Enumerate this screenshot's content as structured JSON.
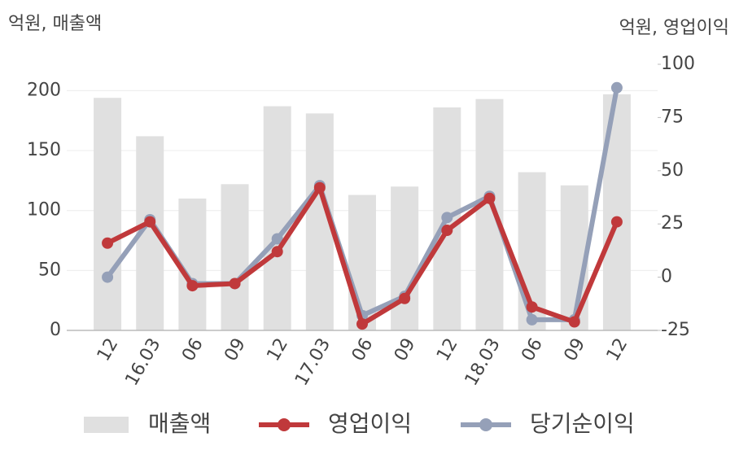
{
  "chart_data": {
    "type": "bar_line",
    "y_label": "억원, 매출액",
    "y2_label": "억원, 영업이익",
    "categories": [
      "12",
      "16.03",
      "06",
      "09",
      "12",
      "17.03",
      "06",
      "09",
      "12",
      "18.03",
      "06",
      "09",
      "12"
    ],
    "series": [
      {
        "name": "매출액",
        "type": "bar",
        "color": "#e0e0e0",
        "values": [
          194,
          162,
          110,
          122,
          187,
          181,
          113,
          120,
          186,
          193,
          132,
          121,
          197
        ]
      },
      {
        "name": "영업이익",
        "type": "line",
        "axis": "y2",
        "color": "#c0393b",
        "values": [
          16,
          26,
          -4,
          -3,
          12,
          42,
          -22,
          -10,
          22,
          37,
          -14,
          -21,
          26
        ]
      },
      {
        "name": "당기순이익",
        "type": "line",
        "axis": "y2",
        "color": "#95a0b8",
        "values": [
          0,
          27,
          -3,
          -3,
          18,
          43,
          -18,
          -9,
          28,
          38,
          -20,
          -20,
          89
        ]
      }
    ],
    "ylim": [
      0,
      222
    ],
    "yticks": [
      0,
      50,
      100,
      150,
      200
    ],
    "y2lim": [
      -25,
      100
    ],
    "y2ticks": [
      -25,
      0,
      25,
      50,
      75,
      100
    ],
    "grid": true
  }
}
